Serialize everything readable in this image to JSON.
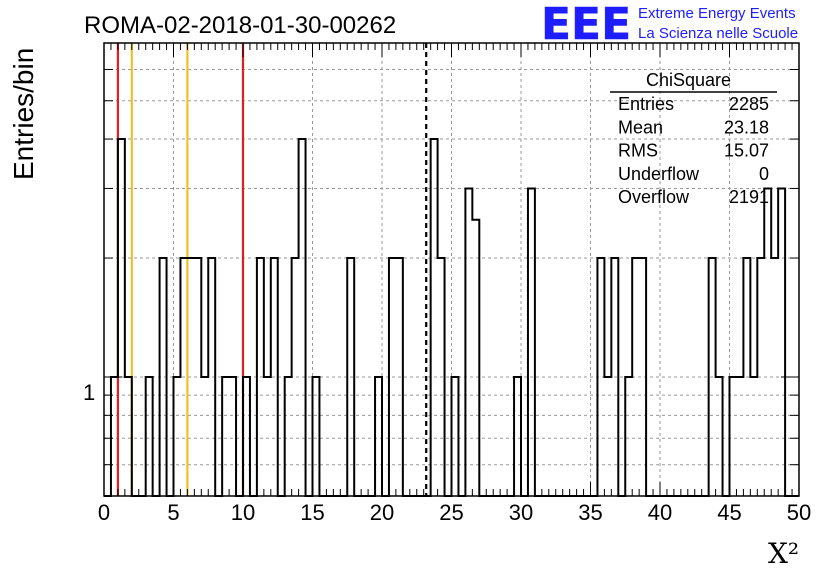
{
  "chart_data": {
    "type": "bar",
    "title": "ROMA-02-2018-01-30-00262",
    "xlabel": "X²",
    "ylabel": "Entries/bin",
    "xlim": [
      0,
      50
    ],
    "bin_width": 0.5,
    "y_scale": "log",
    "ylim": [
      0.5,
      7
    ],
    "grid": true,
    "x_ticks": [
      "0",
      "5",
      "10",
      "15",
      "20",
      "25",
      "30",
      "35",
      "40",
      "45",
      "50"
    ],
    "y_tick_label": "1",
    "bins": [
      {
        "x": 0.5,
        "value": 1
      },
      {
        "x": 1.0,
        "value": 4
      },
      {
        "x": 1.5,
        "value": 1
      },
      {
        "x": 3.0,
        "value": 1
      },
      {
        "x": 4.0,
        "value": 2
      },
      {
        "x": 5.0,
        "value": 1
      },
      {
        "x": 5.5,
        "value": 2
      },
      {
        "x": 6.0,
        "value": 2
      },
      {
        "x": 6.5,
        "value": 2
      },
      {
        "x": 7.0,
        "value": 1
      },
      {
        "x": 7.5,
        "value": 2
      },
      {
        "x": 8.5,
        "value": 1
      },
      {
        "x": 9.0,
        "value": 1
      },
      {
        "x": 10.0,
        "value": 1
      },
      {
        "x": 11.0,
        "value": 2
      },
      {
        "x": 11.5,
        "value": 1
      },
      {
        "x": 12.0,
        "value": 2
      },
      {
        "x": 13.0,
        "value": 1
      },
      {
        "x": 13.5,
        "value": 2
      },
      {
        "x": 14.0,
        "value": 4
      },
      {
        "x": 15.0,
        "value": 1
      },
      {
        "x": 17.5,
        "value": 2
      },
      {
        "x": 19.5,
        "value": 1
      },
      {
        "x": 20.5,
        "value": 2
      },
      {
        "x": 21.0,
        "value": 2
      },
      {
        "x": 23.5,
        "value": 4
      },
      {
        "x": 24.0,
        "value": 2
      },
      {
        "x": 25.0,
        "value": 1
      },
      {
        "x": 26.0,
        "value": 3
      },
      {
        "x": 26.5,
        "value": 2.5
      },
      {
        "x": 29.5,
        "value": 1
      },
      {
        "x": 30.5,
        "value": 3
      },
      {
        "x": 35.5,
        "value": 2
      },
      {
        "x": 36.0,
        "value": 1
      },
      {
        "x": 36.5,
        "value": 2
      },
      {
        "x": 37.5,
        "value": 1
      },
      {
        "x": 38.0,
        "value": 2
      },
      {
        "x": 38.5,
        "value": 2
      },
      {
        "x": 43.5,
        "value": 2
      },
      {
        "x": 44.0,
        "value": 1
      },
      {
        "x": 45.0,
        "value": 1
      },
      {
        "x": 45.5,
        "value": 1
      },
      {
        "x": 46.0,
        "value": 2
      },
      {
        "x": 46.5,
        "value": 1
      },
      {
        "x": 47.0,
        "value": 2
      },
      {
        "x": 47.5,
        "value": 3
      },
      {
        "x": 48.0,
        "value": 2
      },
      {
        "x": 48.5,
        "value": 3
      }
    ],
    "reference_lines": [
      {
        "x": 1.0,
        "color": "#e02020",
        "style": "solid"
      },
      {
        "x": 2.0,
        "color": "#f0c020",
        "style": "solid"
      },
      {
        "x": 6.0,
        "color": "#f0c020",
        "style": "solid"
      },
      {
        "x": 10.0,
        "color": "#e02020",
        "style": "solid"
      },
      {
        "x": 23.18,
        "color": "#000000",
        "style": "dashed"
      }
    ],
    "stats_box": {
      "title": "ChiSquare",
      "rows": [
        {
          "label": "Entries",
          "value": "2285"
        },
        {
          "label": "Mean",
          "value": "23.18"
        },
        {
          "label": "RMS",
          "value": "15.07"
        },
        {
          "label": "Underflow",
          "value": "0"
        },
        {
          "label": "Overflow",
          "value": "2191"
        }
      ]
    }
  },
  "logo": {
    "letters": "EEE",
    "line1": "Extreme Energy Events",
    "line2": "La Scienza nelle Scuole",
    "color": "#1d1dff"
  }
}
